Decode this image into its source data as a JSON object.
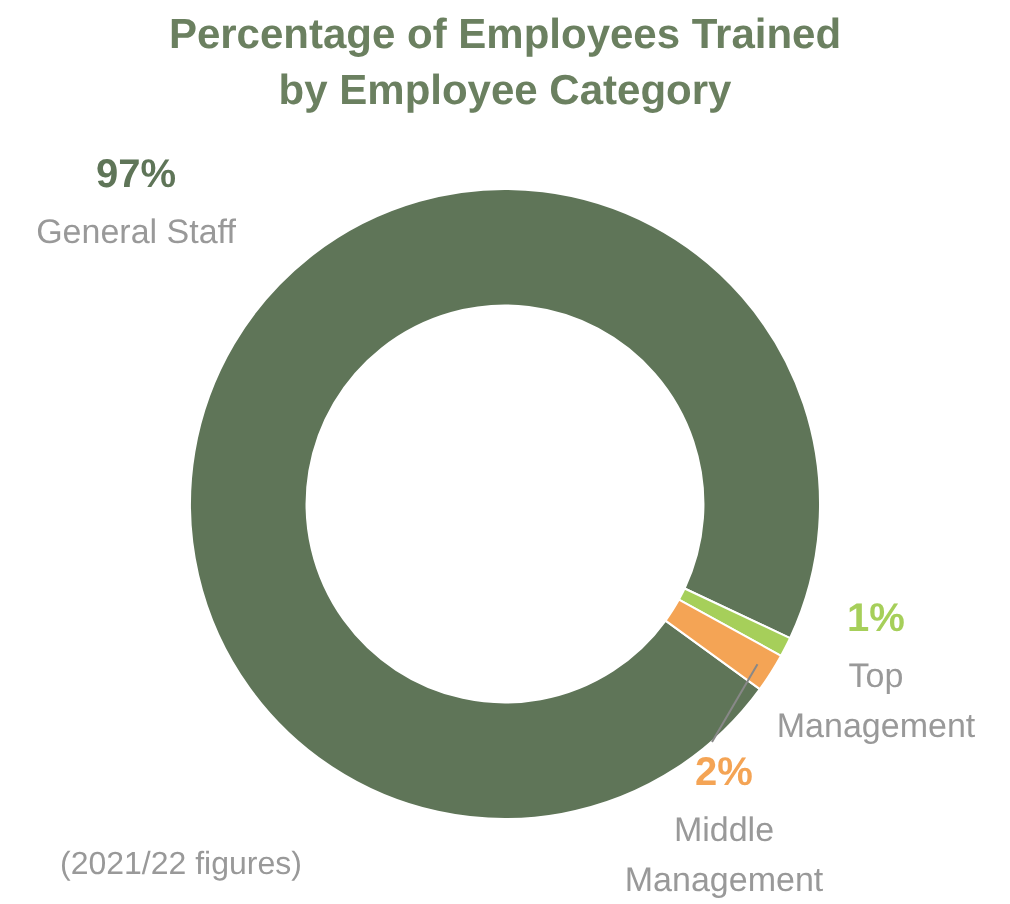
{
  "chart_data": {
    "type": "donut",
    "title": "Percentage of Employees Trained by Employee Category",
    "categories": [
      "General Staff",
      "Top Management",
      "Middle Management"
    ],
    "values": [
      97,
      1,
      2
    ],
    "colors": [
      "#5f7558",
      "#a6cf5a",
      "#f4a455"
    ],
    "value_labels": [
      "97%",
      "1%",
      "2%"
    ],
    "legend": false,
    "annotations": [
      "(2021/22 figures)"
    ]
  }
}
